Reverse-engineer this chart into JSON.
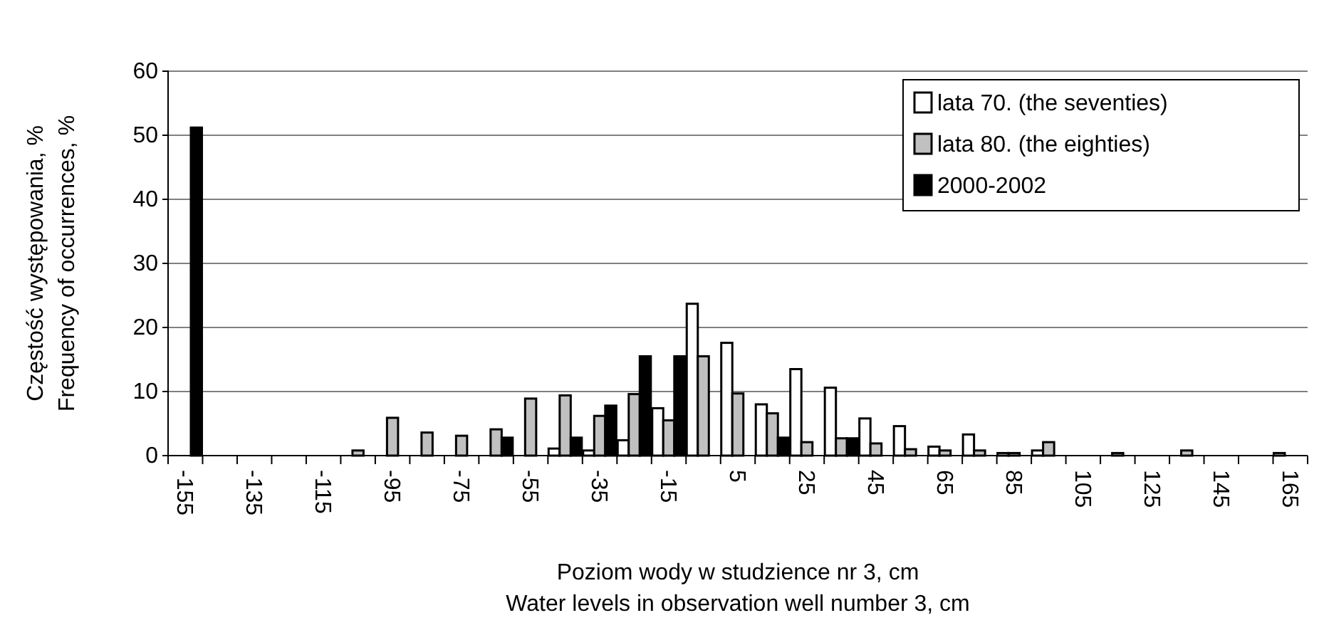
{
  "chart_data": {
    "type": "bar",
    "xlabel": "Poziom wody w studzience nr 3, cm\nWater levels in observation well number 3, cm",
    "ylabel": "Częstość występowania, %\nFrequency of occurrences, %",
    "categories": [
      "-155",
      null,
      "-135",
      null,
      "-115",
      null,
      "-95",
      null,
      "-75",
      null,
      "-55",
      null,
      "-35",
      null,
      "-15",
      null,
      "5",
      null,
      "25",
      null,
      "45",
      null,
      "65",
      null,
      "85",
      null,
      "105",
      null,
      "125",
      null,
      "145",
      null,
      "165"
    ],
    "series": [
      {
        "name": "lata 70. (the seventies)",
        "color": "#ffffff",
        "values": [
          0,
          0,
          0,
          0,
          0,
          0,
          0,
          0,
          0,
          0,
          0,
          1.1,
          0.8,
          2.4,
          7.4,
          23.7,
          17.6,
          8,
          13.5,
          10.6,
          5.8,
          4.6,
          1.4,
          3.3,
          0.4,
          0.8,
          0,
          0,
          0,
          0,
          0,
          0,
          0.4
        ]
      },
      {
        "name": "lata 80. (the eighties)",
        "color": "#c0c0c0",
        "values": [
          0,
          0,
          0,
          0,
          0,
          0.8,
          5.9,
          3.6,
          3.1,
          4.1,
          8.9,
          9.4,
          6.2,
          9.6,
          5.5,
          15.5,
          9.7,
          6.6,
          2.1,
          2.7,
          1.9,
          1,
          0.8,
          0.8,
          0.4,
          2.1,
          0,
          0.4,
          0,
          0.8,
          0,
          0,
          0
        ]
      },
      {
        "name": "2000-2002",
        "color": "#000000",
        "values": [
          51.2,
          0,
          0,
          0,
          0,
          0,
          0,
          0,
          0,
          2.8,
          0,
          2.8,
          7.8,
          15.5,
          15.5,
          0,
          0,
          2.8,
          0,
          2.7,
          0,
          0,
          0,
          0,
          0,
          0,
          0,
          0,
          0,
          0,
          0,
          0,
          0
        ]
      }
    ],
    "ylim": [
      0,
      60
    ],
    "yticks": [
      0,
      10,
      20,
      30,
      40,
      50,
      60
    ],
    "grid": "y",
    "legend": "top right"
  }
}
